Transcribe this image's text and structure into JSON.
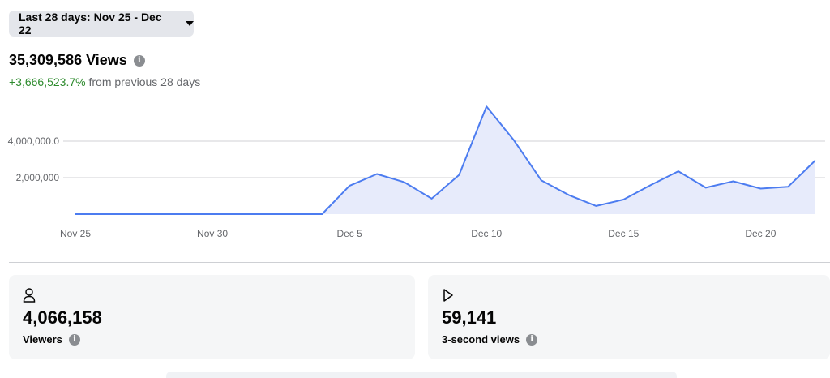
{
  "date_range": {
    "label": "Last 28 days: Nov 25 - Dec 22",
    "icon": "caret-down-icon"
  },
  "summary": {
    "views_title": "35,309,586 Views",
    "change_value": "+3,666,523.7%",
    "change_text": "from previous 28 days"
  },
  "chart_data": {
    "type": "area",
    "x": [
      "Nov 25",
      "Nov 26",
      "Nov 27",
      "Nov 28",
      "Nov 29",
      "Nov 30",
      "Dec 1",
      "Dec 2",
      "Dec 3",
      "Dec 4",
      "Dec 5",
      "Dec 6",
      "Dec 7",
      "Dec 8",
      "Dec 9",
      "Dec 10",
      "Dec 11",
      "Dec 12",
      "Dec 13",
      "Dec 14",
      "Dec 15",
      "Dec 16",
      "Dec 17",
      "Dec 18",
      "Dec 19",
      "Dec 20",
      "Dec 21",
      "Dec 22"
    ],
    "x_tick_labels": [
      "Nov 25",
      "Nov 30",
      "Dec 5",
      "Dec 10",
      "Dec 15",
      "Dec 20"
    ],
    "x_tick_indices": [
      0,
      5,
      10,
      15,
      20,
      25
    ],
    "y_tick_labels": [
      "4,000,000.0",
      "2,000,000"
    ],
    "y_ticks": [
      4000000,
      2000000
    ],
    "ylim": [
      0,
      4000000
    ],
    "series": [
      {
        "values": [
          0,
          0,
          0,
          0,
          0,
          0,
          0,
          0,
          0,
          0,
          1550000,
          2200000,
          1750000,
          850000,
          2150000,
          5900000,
          4050000,
          1850000,
          1050000,
          450000,
          800000,
          1600000,
          2350000,
          1450000,
          1800000,
          1400000,
          1500000,
          2950000
        ]
      }
    ],
    "line_color": "#4c7cf0",
    "fill_color": "#e7ebfb",
    "grid_color": "#d0d2d6"
  },
  "cards": [
    {
      "icon": "person-icon",
      "value": "4,066,158",
      "label": "Viewers"
    },
    {
      "icon": "play-icon",
      "value": "59,141",
      "label": "3-second views"
    }
  ]
}
